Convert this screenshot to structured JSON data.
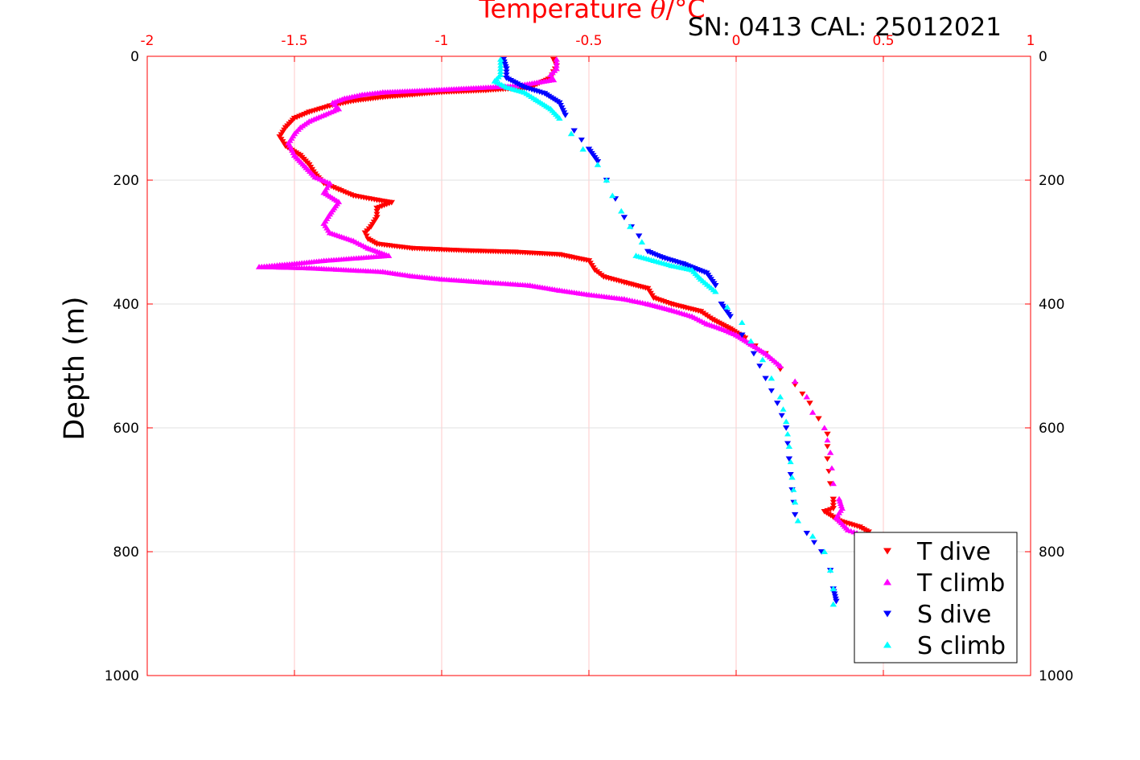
{
  "chart_data": {
    "type": "scatter",
    "title": {
      "prefix": "Temperature ",
      "symbol": "θ",
      "suffix": "/°C"
    },
    "annotation": "SN: 0413  CAL: 25012021",
    "xlabel": "Temperature θ/°C",
    "ylabel": "Depth (m)",
    "x_axis_position": "top",
    "y_reversed": true,
    "xlim": [
      -2,
      1
    ],
    "ylim": [
      0,
      1000
    ],
    "x_ticks": [
      -2,
      -1.5,
      -1,
      -0.5,
      0,
      0.5,
      1
    ],
    "x_tick_labels": [
      "-2",
      "-1.5",
      "-1",
      "-0.5",
      "0",
      "0.5",
      "1"
    ],
    "y_ticks": [
      0,
      200,
      400,
      600,
      800,
      1000
    ],
    "y_tick_labels": [
      "0",
      "200",
      "400",
      "600",
      "800",
      "1000"
    ],
    "grid": true,
    "legend_position": "bottom-right",
    "colors": {
      "axis": "#ff0000",
      "grid": "#e0e0e0",
      "x_grid": "#ffc8c8"
    },
    "series": [
      {
        "name": "T dive",
        "marker": "triangle-down",
        "color": "#ff0000",
        "points": [
          [
            -0.62,
            5
          ],
          [
            -0.61,
            15
          ],
          [
            -0.62,
            25
          ],
          [
            -0.63,
            35
          ],
          [
            -0.7,
            50
          ],
          [
            -0.85,
            55
          ],
          [
            -1.0,
            58
          ],
          [
            -1.1,
            62
          ],
          [
            -1.2,
            66
          ],
          [
            -1.3,
            72
          ],
          [
            -1.38,
            80
          ],
          [
            -1.45,
            90
          ],
          [
            -1.5,
            100
          ],
          [
            -1.53,
            115
          ],
          [
            -1.55,
            130
          ],
          [
            -1.53,
            145
          ],
          [
            -1.48,
            160
          ],
          [
            -1.45,
            175
          ],
          [
            -1.43,
            190
          ],
          [
            -1.4,
            205
          ],
          [
            -1.35,
            215
          ],
          [
            -1.3,
            225
          ],
          [
            -1.22,
            232
          ],
          [
            -1.17,
            236
          ],
          [
            -1.22,
            245
          ],
          [
            -1.22,
            260
          ],
          [
            -1.24,
            275
          ],
          [
            -1.26,
            285
          ],
          [
            -1.25,
            295
          ],
          [
            -1.22,
            303
          ],
          [
            -1.1,
            310
          ],
          [
            -0.9,
            314
          ],
          [
            -0.75,
            316
          ],
          [
            -0.6,
            320
          ],
          [
            -0.5,
            330
          ],
          [
            -0.48,
            345
          ],
          [
            -0.45,
            356
          ],
          [
            -0.38,
            365
          ],
          [
            -0.3,
            375
          ],
          [
            -0.28,
            390
          ],
          [
            -0.22,
            400
          ],
          [
            -0.12,
            412
          ],
          [
            -0.08,
            425
          ],
          [
            -0.02,
            440
          ],
          [
            0.03,
            455
          ],
          [
            0.1,
            480
          ],
          [
            0.15,
            505
          ],
          [
            0.2,
            530
          ],
          [
            0.25,
            560
          ],
          [
            0.28,
            585
          ],
          [
            0.31,
            610
          ],
          [
            0.31,
            650
          ],
          [
            0.32,
            690
          ],
          [
            0.33,
            715
          ],
          [
            0.33,
            730
          ],
          [
            0.3,
            735
          ],
          [
            0.35,
            750
          ],
          [
            0.42,
            760
          ],
          [
            0.45,
            768
          ]
        ]
      },
      {
        "name": "T climb",
        "marker": "triangle-up",
        "color": "#ff00ff",
        "points": [
          [
            -0.61,
            5
          ],
          [
            -0.61,
            20
          ],
          [
            -0.63,
            30
          ],
          [
            -0.62,
            38
          ],
          [
            -0.75,
            48
          ],
          [
            -1.05,
            55
          ],
          [
            -1.2,
            58
          ],
          [
            -1.27,
            62
          ],
          [
            -1.33,
            68
          ],
          [
            -1.37,
            75
          ],
          [
            -1.35,
            85
          ],
          [
            -1.4,
            95
          ],
          [
            -1.45,
            105
          ],
          [
            -1.48,
            115
          ],
          [
            -1.5,
            125
          ],
          [
            -1.52,
            140
          ],
          [
            -1.5,
            160
          ],
          [
            -1.46,
            180
          ],
          [
            -1.43,
            195
          ],
          [
            -1.38,
            205
          ],
          [
            -1.4,
            220
          ],
          [
            -1.35,
            235
          ],
          [
            -1.38,
            255
          ],
          [
            -1.4,
            270
          ],
          [
            -1.38,
            285
          ],
          [
            -1.3,
            298
          ],
          [
            -1.25,
            310
          ],
          [
            -1.18,
            322
          ],
          [
            -1.4,
            330
          ],
          [
            -1.5,
            335
          ],
          [
            -1.55,
            337
          ],
          [
            -1.62,
            340
          ],
          [
            -1.45,
            342
          ],
          [
            -1.2,
            348
          ],
          [
            -1.1,
            355
          ],
          [
            -1.0,
            360
          ],
          [
            -0.85,
            365
          ],
          [
            -0.7,
            370
          ],
          [
            -0.6,
            378
          ],
          [
            -0.5,
            385
          ],
          [
            -0.38,
            392
          ],
          [
            -0.3,
            400
          ],
          [
            -0.22,
            410
          ],
          [
            -0.15,
            420
          ],
          [
            -0.1,
            432
          ],
          [
            -0.05,
            440
          ],
          [
            0.0,
            450
          ],
          [
            0.05,
            465
          ],
          [
            0.1,
            480
          ],
          [
            0.15,
            500
          ],
          [
            0.2,
            525
          ],
          [
            0.24,
            550
          ],
          [
            0.26,
            575
          ],
          [
            0.3,
            600
          ],
          [
            0.32,
            640
          ],
          [
            0.33,
            690
          ],
          [
            0.35,
            715
          ],
          [
            0.36,
            730
          ],
          [
            0.34,
            745
          ],
          [
            0.38,
            765
          ],
          [
            0.41,
            770
          ]
        ]
      },
      {
        "name": "S dive",
        "marker": "triangle-down",
        "color": "#0000ff",
        "points": [
          [
            -0.79,
            5
          ],
          [
            -0.78,
            20
          ],
          [
            -0.78,
            35
          ],
          [
            -0.72,
            50
          ],
          [
            -0.65,
            60
          ],
          [
            -0.6,
            75
          ],
          [
            -0.58,
            95
          ],
          [
            -0.55,
            120
          ],
          [
            -0.5,
            150
          ],
          [
            -0.47,
            170
          ],
          [
            -0.44,
            200
          ],
          [
            -0.41,
            230
          ],
          [
            -0.38,
            260
          ],
          [
            -0.33,
            290
          ],
          [
            -0.3,
            315
          ],
          [
            -0.25,
            325
          ],
          [
            -0.18,
            335
          ],
          [
            -0.1,
            350
          ],
          [
            -0.07,
            370
          ],
          [
            -0.05,
            400
          ],
          [
            -0.02,
            420
          ],
          [
            0.02,
            450
          ],
          [
            0.06,
            480
          ],
          [
            0.1,
            520
          ],
          [
            0.14,
            560
          ],
          [
            0.17,
            600
          ],
          [
            0.18,
            650
          ],
          [
            0.19,
            700
          ],
          [
            0.2,
            740
          ],
          [
            0.24,
            770
          ],
          [
            0.29,
            800
          ],
          [
            0.32,
            830
          ],
          [
            0.33,
            860
          ],
          [
            0.34,
            880
          ]
        ]
      },
      {
        "name": "S climb",
        "marker": "triangle-up",
        "color": "#00ffff",
        "points": [
          [
            -0.8,
            5
          ],
          [
            -0.8,
            20
          ],
          [
            -0.8,
            30
          ],
          [
            -0.82,
            40
          ],
          [
            -0.78,
            50
          ],
          [
            -0.72,
            58
          ],
          [
            -0.68,
            70
          ],
          [
            -0.63,
            85
          ],
          [
            -0.6,
            100
          ],
          [
            -0.56,
            125
          ],
          [
            -0.52,
            150
          ],
          [
            -0.47,
            175
          ],
          [
            -0.44,
            200
          ],
          [
            -0.42,
            225
          ],
          [
            -0.39,
            250
          ],
          [
            -0.36,
            275
          ],
          [
            -0.32,
            300
          ],
          [
            -0.34,
            322
          ],
          [
            -0.28,
            330
          ],
          [
            -0.22,
            338
          ],
          [
            -0.15,
            345
          ],
          [
            -0.12,
            360
          ],
          [
            -0.07,
            380
          ],
          [
            -0.03,
            405
          ],
          [
            0.02,
            430
          ],
          [
            0.05,
            460
          ],
          [
            0.09,
            490
          ],
          [
            0.12,
            520
          ],
          [
            0.15,
            550
          ],
          [
            0.17,
            590
          ],
          [
            0.18,
            630
          ],
          [
            0.19,
            680
          ],
          [
            0.2,
            720
          ],
          [
            0.21,
            750
          ],
          [
            0.26,
            775
          ],
          [
            0.3,
            800
          ],
          [
            0.32,
            830
          ],
          [
            0.33,
            860
          ],
          [
            0.33,
            885
          ]
        ]
      }
    ]
  }
}
